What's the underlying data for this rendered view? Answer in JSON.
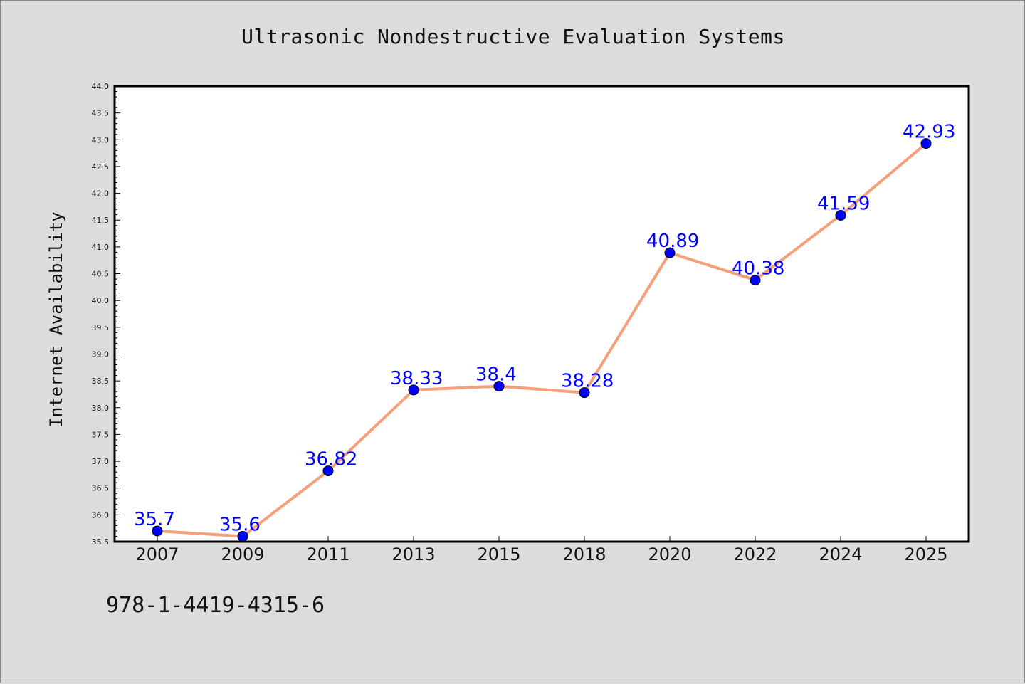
{
  "header": {
    "title": "Ultrasonic Nondestructive Evaluation Systems"
  },
  "footer": {
    "isbn": "978-1-4419-4315-6"
  },
  "chart_data": {
    "type": "line",
    "title": "Ultrasonic Nondestructive Evaluation Systems",
    "xlabel": "",
    "ylabel": "Internet Availability",
    "categories": [
      "2007",
      "2009",
      "2011",
      "2013",
      "2015",
      "2018",
      "2020",
      "2022",
      "2024",
      "2025"
    ],
    "series": [
      {
        "values": [
          35.7,
          35.6,
          36.82,
          38.33,
          38.4,
          38.28,
          40.89,
          40.38,
          41.59,
          42.93
        ],
        "labels": [
          "35.7",
          "35.6",
          "36.82",
          "38.33",
          "38.4",
          "38.28",
          "40.89",
          "40.38",
          "41.59",
          "42.93"
        ],
        "line_color": "#f4a07a",
        "marker_color": "#0000ff"
      }
    ],
    "ylim": [
      35.5,
      44.0
    ],
    "yticks": [
      "35.5",
      "36.0",
      "36.5",
      "37.0",
      "37.5",
      "38.0",
      "38.5",
      "39.0",
      "39.5",
      "40.0",
      "40.5",
      "41.0",
      "41.5",
      "42.0",
      "42.5",
      "43.0",
      "43.5",
      "44.0"
    ],
    "grid": false,
    "legend": "none",
    "colors": {
      "background": "#dcdcdc",
      "plot_background": "#ffffff",
      "axis": "#000000",
      "line": "#f4a07a",
      "marker": "#0000ff",
      "data_label": "#0000ff"
    }
  }
}
